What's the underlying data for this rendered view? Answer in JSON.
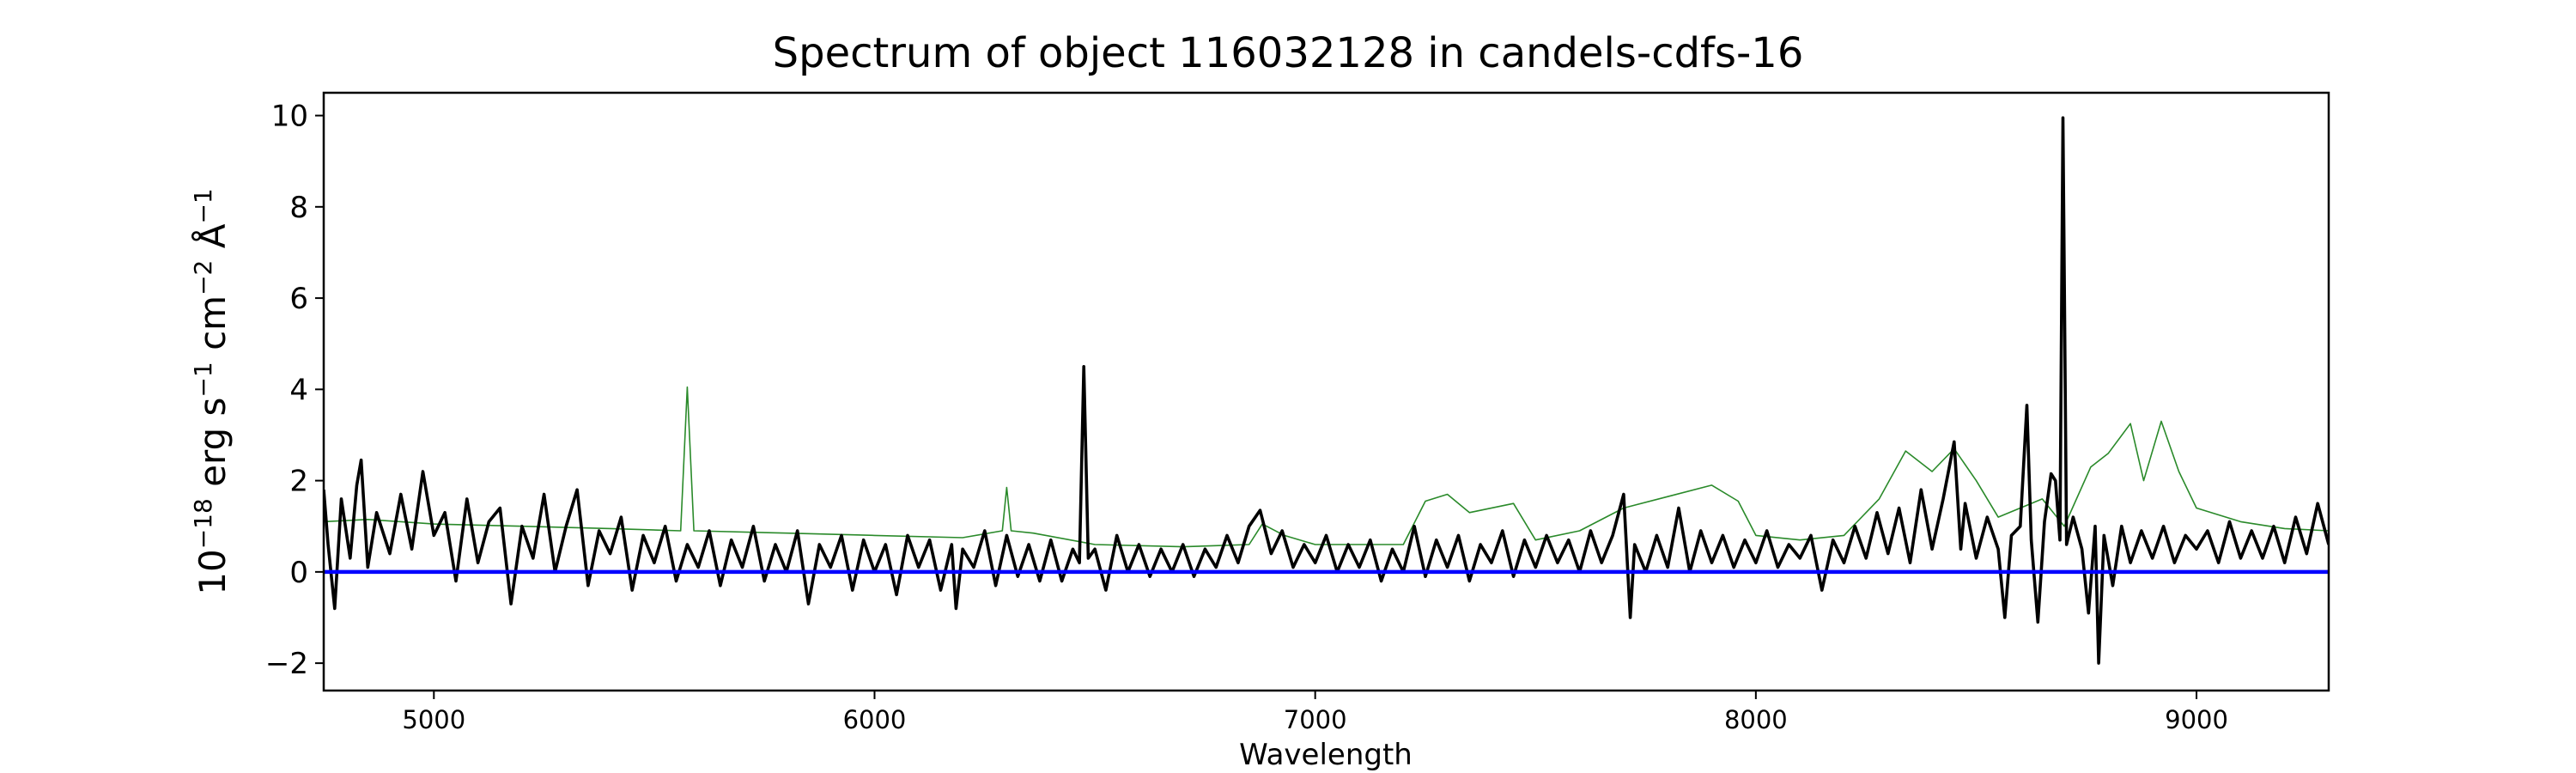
{
  "chart_data": {
    "type": "line",
    "title": "Spectrum of object 116032128 in candels-cdfs-16",
    "xlabel": "Wavelength",
    "ylabel": {
      "prefix": "10",
      "exp1": "−18",
      "unit1": " erg s",
      "exp2": "−1",
      "unit2": " cm",
      "exp3": "−2",
      "unit3": " Å",
      "exp4": "−1"
    },
    "xlim": [
      4750,
      9300
    ],
    "ylim": [
      -2.6,
      10.5
    ],
    "xticks": [
      5000,
      6000,
      7000,
      8000,
      9000
    ],
    "yticks": [
      -2,
      0,
      2,
      4,
      6,
      8,
      10
    ],
    "ytick_labels": [
      "−2",
      "0",
      "2",
      "4",
      "6",
      "8",
      "10"
    ],
    "grid": false,
    "series": [
      {
        "color": "#2a8a2a",
        "role": "model",
        "points": [
          [
            4750,
            1.1
          ],
          [
            4850,
            1.15
          ],
          [
            5000,
            1.05
          ],
          [
            5200,
            1.0
          ],
          [
            5400,
            0.95
          ],
          [
            5560,
            0.9
          ],
          [
            5575,
            4.05
          ],
          [
            5590,
            0.9
          ],
          [
            5800,
            0.85
          ],
          [
            6000,
            0.8
          ],
          [
            6200,
            0.75
          ],
          [
            6290,
            0.9
          ],
          [
            6300,
            1.85
          ],
          [
            6310,
            0.9
          ],
          [
            6360,
            0.85
          ],
          [
            6500,
            0.6
          ],
          [
            6700,
            0.55
          ],
          [
            6850,
            0.6
          ],
          [
            6880,
            1.05
          ],
          [
            6930,
            0.8
          ],
          [
            7000,
            0.6
          ],
          [
            7200,
            0.6
          ],
          [
            7250,
            1.55
          ],
          [
            7300,
            1.7
          ],
          [
            7350,
            1.3
          ],
          [
            7450,
            1.5
          ],
          [
            7500,
            0.7
          ],
          [
            7600,
            0.9
          ],
          [
            7700,
            1.4
          ],
          [
            7800,
            1.65
          ],
          [
            7900,
            1.9
          ],
          [
            7960,
            1.55
          ],
          [
            8000,
            0.8
          ],
          [
            8100,
            0.7
          ],
          [
            8200,
            0.8
          ],
          [
            8280,
            1.6
          ],
          [
            8340,
            2.65
          ],
          [
            8400,
            2.2
          ],
          [
            8450,
            2.7
          ],
          [
            8500,
            2.0
          ],
          [
            8550,
            1.2
          ],
          [
            8600,
            1.4
          ],
          [
            8650,
            1.6
          ],
          [
            8700,
            1.0
          ],
          [
            8760,
            2.3
          ],
          [
            8800,
            2.6
          ],
          [
            8850,
            3.25
          ],
          [
            8880,
            2.0
          ],
          [
            8920,
            3.3
          ],
          [
            8960,
            2.2
          ],
          [
            9000,
            1.4
          ],
          [
            9100,
            1.1
          ],
          [
            9200,
            0.95
          ],
          [
            9300,
            0.9
          ]
        ]
      },
      {
        "color": "#000000",
        "role": "observed",
        "points": [
          [
            4750,
            1.8
          ],
          [
            4760,
            0.6
          ],
          [
            4775,
            -0.8
          ],
          [
            4790,
            1.6
          ],
          [
            4810,
            0.3
          ],
          [
            4825,
            1.9
          ],
          [
            4835,
            2.45
          ],
          [
            4850,
            0.1
          ],
          [
            4870,
            1.3
          ],
          [
            4900,
            0.4
          ],
          [
            4925,
            1.7
          ],
          [
            4950,
            0.5
          ],
          [
            4975,
            2.2
          ],
          [
            5000,
            0.8
          ],
          [
            5025,
            1.3
          ],
          [
            5050,
            -0.2
          ],
          [
            5075,
            1.6
          ],
          [
            5100,
            0.2
          ],
          [
            5125,
            1.1
          ],
          [
            5150,
            1.4
          ],
          [
            5175,
            -0.7
          ],
          [
            5200,
            1.0
          ],
          [
            5225,
            0.3
          ],
          [
            5250,
            1.7
          ],
          [
            5275,
            0.0
          ],
          [
            5300,
            1.0
          ],
          [
            5325,
            1.8
          ],
          [
            5350,
            -0.3
          ],
          [
            5375,
            0.9
          ],
          [
            5400,
            0.4
          ],
          [
            5425,
            1.2
          ],
          [
            5450,
            -0.4
          ],
          [
            5475,
            0.8
          ],
          [
            5500,
            0.2
          ],
          [
            5525,
            1.0
          ],
          [
            5550,
            -0.2
          ],
          [
            5575,
            0.6
          ],
          [
            5600,
            0.1
          ],
          [
            5625,
            0.9
          ],
          [
            5650,
            -0.3
          ],
          [
            5675,
            0.7
          ],
          [
            5700,
            0.1
          ],
          [
            5725,
            1.0
          ],
          [
            5750,
            -0.2
          ],
          [
            5775,
            0.6
          ],
          [
            5800,
            0.0
          ],
          [
            5825,
            0.9
          ],
          [
            5850,
            -0.7
          ],
          [
            5875,
            0.6
          ],
          [
            5900,
            0.1
          ],
          [
            5925,
            0.8
          ],
          [
            5950,
            -0.4
          ],
          [
            5975,
            0.7
          ],
          [
            6000,
            0.0
          ],
          [
            6025,
            0.6
          ],
          [
            6050,
            -0.5
          ],
          [
            6075,
            0.8
          ],
          [
            6100,
            0.1
          ],
          [
            6125,
            0.7
          ],
          [
            6150,
            -0.4
          ],
          [
            6175,
            0.6
          ],
          [
            6185,
            -0.8
          ],
          [
            6200,
            0.5
          ],
          [
            6225,
            0.1
          ],
          [
            6250,
            0.9
          ],
          [
            6275,
            -0.3
          ],
          [
            6300,
            0.8
          ],
          [
            6325,
            -0.1
          ],
          [
            6350,
            0.6
          ],
          [
            6375,
            -0.2
          ],
          [
            6400,
            0.7
          ],
          [
            6425,
            -0.2
          ],
          [
            6450,
            0.5
          ],
          [
            6465,
            0.2
          ],
          [
            6475,
            4.5
          ],
          [
            6485,
            0.3
          ],
          [
            6500,
            0.5
          ],
          [
            6525,
            -0.4
          ],
          [
            6550,
            0.8
          ],
          [
            6575,
            0.0
          ],
          [
            6600,
            0.6
          ],
          [
            6625,
            -0.1
          ],
          [
            6650,
            0.5
          ],
          [
            6675,
            0.0
          ],
          [
            6700,
            0.6
          ],
          [
            6725,
            -0.1
          ],
          [
            6750,
            0.5
          ],
          [
            6775,
            0.1
          ],
          [
            6800,
            0.8
          ],
          [
            6825,
            0.2
          ],
          [
            6850,
            1.0
          ],
          [
            6875,
            1.35
          ],
          [
            6900,
            0.4
          ],
          [
            6925,
            0.9
          ],
          [
            6950,
            0.1
          ],
          [
            6975,
            0.6
          ],
          [
            7000,
            0.2
          ],
          [
            7025,
            0.8
          ],
          [
            7050,
            0.0
          ],
          [
            7075,
            0.6
          ],
          [
            7100,
            0.1
          ],
          [
            7125,
            0.7
          ],
          [
            7150,
            -0.2
          ],
          [
            7175,
            0.5
          ],
          [
            7200,
            0.0
          ],
          [
            7225,
            1.0
          ],
          [
            7250,
            -0.1
          ],
          [
            7275,
            0.7
          ],
          [
            7300,
            0.1
          ],
          [
            7325,
            0.8
          ],
          [
            7350,
            -0.2
          ],
          [
            7375,
            0.6
          ],
          [
            7400,
            0.2
          ],
          [
            7425,
            0.9
          ],
          [
            7450,
            -0.1
          ],
          [
            7475,
            0.7
          ],
          [
            7500,
            0.1
          ],
          [
            7525,
            0.8
          ],
          [
            7550,
            0.2
          ],
          [
            7575,
            0.7
          ],
          [
            7600,
            0.0
          ],
          [
            7625,
            0.9
          ],
          [
            7650,
            0.2
          ],
          [
            7675,
            0.8
          ],
          [
            7700,
            1.7
          ],
          [
            7715,
            -1.0
          ],
          [
            7725,
            0.6
          ],
          [
            7750,
            0.0
          ],
          [
            7775,
            0.8
          ],
          [
            7800,
            0.1
          ],
          [
            7825,
            1.4
          ],
          [
            7850,
            0.0
          ],
          [
            7875,
            0.9
          ],
          [
            7900,
            0.2
          ],
          [
            7925,
            0.8
          ],
          [
            7950,
            0.1
          ],
          [
            7975,
            0.7
          ],
          [
            8000,
            0.2
          ],
          [
            8025,
            0.9
          ],
          [
            8050,
            0.1
          ],
          [
            8075,
            0.6
          ],
          [
            8100,
            0.3
          ],
          [
            8125,
            0.8
          ],
          [
            8150,
            -0.4
          ],
          [
            8175,
            0.7
          ],
          [
            8200,
            0.2
          ],
          [
            8225,
            1.0
          ],
          [
            8250,
            0.3
          ],
          [
            8275,
            1.3
          ],
          [
            8300,
            0.4
          ],
          [
            8325,
            1.4
          ],
          [
            8350,
            0.2
          ],
          [
            8375,
            1.8
          ],
          [
            8400,
            0.5
          ],
          [
            8425,
            1.6
          ],
          [
            8450,
            2.85
          ],
          [
            8465,
            0.5
          ],
          [
            8475,
            1.5
          ],
          [
            8500,
            0.3
          ],
          [
            8525,
            1.2
          ],
          [
            8550,
            0.5
          ],
          [
            8565,
            -1.0
          ],
          [
            8580,
            0.8
          ],
          [
            8600,
            1.0
          ],
          [
            8615,
            3.65
          ],
          [
            8625,
            0.7
          ],
          [
            8640,
            -1.1
          ],
          [
            8655,
            1.1
          ],
          [
            8670,
            2.15
          ],
          [
            8680,
            2.0
          ],
          [
            8690,
            0.7
          ],
          [
            8697,
            9.95
          ],
          [
            8705,
            0.6
          ],
          [
            8720,
            1.2
          ],
          [
            8740,
            0.5
          ],
          [
            8755,
            -0.9
          ],
          [
            8770,
            1.0
          ],
          [
            8778,
            -2.0
          ],
          [
            8790,
            0.8
          ],
          [
            8810,
            -0.3
          ],
          [
            8830,
            1.0
          ],
          [
            8850,
            0.2
          ],
          [
            8875,
            0.9
          ],
          [
            8900,
            0.3
          ],
          [
            8925,
            1.0
          ],
          [
            8950,
            0.2
          ],
          [
            8975,
            0.8
          ],
          [
            9000,
            0.5
          ],
          [
            9025,
            0.9
          ],
          [
            9050,
            0.2
          ],
          [
            9075,
            1.1
          ],
          [
            9100,
            0.3
          ],
          [
            9125,
            0.9
          ],
          [
            9150,
            0.3
          ],
          [
            9175,
            1.0
          ],
          [
            9200,
            0.2
          ],
          [
            9225,
            1.2
          ],
          [
            9250,
            0.4
          ],
          [
            9275,
            1.5
          ],
          [
            9300,
            0.6
          ]
        ]
      },
      {
        "color": "#0000ff",
        "role": "zero",
        "points": [
          [
            4750,
            0
          ],
          [
            9300,
            0
          ]
        ]
      }
    ]
  }
}
